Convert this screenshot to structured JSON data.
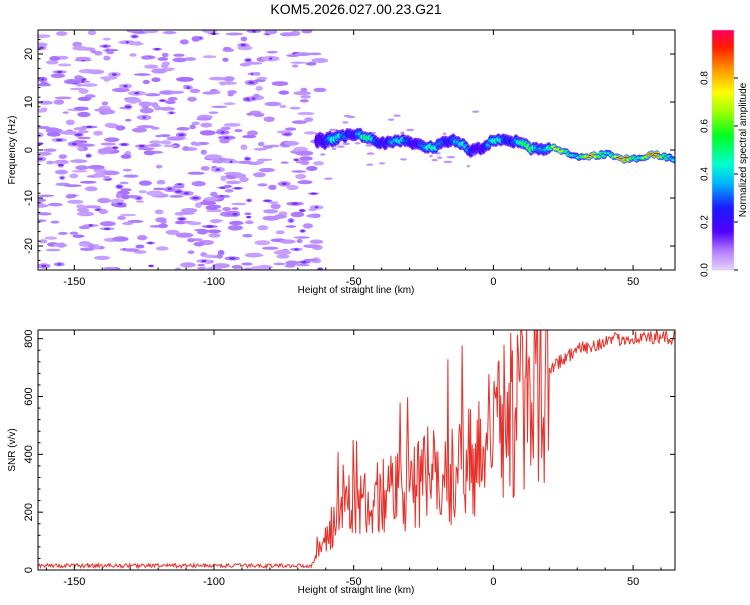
{
  "chart_data": [
    {
      "type": "heatmap",
      "title": "KOM5.2026.027.00.23.G21",
      "xlabel": "Height of straight line (km)",
      "ylabel": "Frequency (Hz)",
      "xlim": [
        -163,
        65
      ],
      "ylim": [
        -25,
        25
      ],
      "xticks": [
        -150,
        -100,
        -50,
        0,
        50
      ],
      "yticks": [
        -20,
        -10,
        0,
        10,
        20
      ],
      "colorbar": {
        "label": "Normalized spectral amplitude",
        "range": [
          0,
          1
        ],
        "ticks": [
          0.0,
          0.2,
          0.4,
          0.6,
          0.8
        ],
        "tick_labels": [
          "0.0",
          "0.2",
          "0.4",
          "0.6",
          "0.8"
        ]
      },
      "signal_ridge": [
        {
          "x": -63,
          "f": 2.0,
          "a": 0.35
        },
        {
          "x": -55,
          "f": 3.0,
          "a": 0.45
        },
        {
          "x": -45,
          "f": 2.5,
          "a": 0.5
        },
        {
          "x": -35,
          "f": 1.5,
          "a": 0.4
        },
        {
          "x": -25,
          "f": 1.0,
          "a": 0.45
        },
        {
          "x": -15,
          "f": 1.5,
          "a": 0.5
        },
        {
          "x": -8,
          "f": 0.0,
          "a": 0.35
        },
        {
          "x": 0,
          "f": 2.0,
          "a": 0.45
        },
        {
          "x": 10,
          "f": 1.5,
          "a": 0.55
        },
        {
          "x": 20,
          "f": 0.0,
          "a": 0.7
        },
        {
          "x": 30,
          "f": -1.0,
          "a": 0.8
        },
        {
          "x": 40,
          "f": -1.5,
          "a": 0.9
        },
        {
          "x": 50,
          "f": -1.5,
          "a": 0.95
        },
        {
          "x": 65,
          "f": -1.5,
          "a": 0.95
        }
      ]
    },
    {
      "type": "line",
      "xlabel": "Height of straight line (km)",
      "ylabel": "SNR (v/v)",
      "xlim": [
        -163,
        65
      ],
      "ylim": [
        0,
        830
      ],
      "xticks": [
        -150,
        -100,
        -50,
        0,
        50
      ],
      "yticks": [
        0,
        200,
        400,
        600,
        800
      ],
      "series": [
        {
          "name": "SNR",
          "color": "#e8302a",
          "envelope": [
            {
              "x": -163,
              "y": 15
            },
            {
              "x": -65,
              "y": 15
            },
            {
              "x": -60,
              "y": 120
            },
            {
              "x": -55,
              "y": 200
            },
            {
              "x": -50,
              "y": 230
            },
            {
              "x": -40,
              "y": 260
            },
            {
              "x": -30,
              "y": 290
            },
            {
              "x": -20,
              "y": 330
            },
            {
              "x": -10,
              "y": 380
            },
            {
              "x": 0,
              "y": 480
            },
            {
              "x": 10,
              "y": 600
            },
            {
              "x": 20,
              "y": 700
            },
            {
              "x": 30,
              "y": 760
            },
            {
              "x": 40,
              "y": 790
            },
            {
              "x": 50,
              "y": 805
            },
            {
              "x": 65,
              "y": 800
            }
          ]
        }
      ]
    }
  ]
}
